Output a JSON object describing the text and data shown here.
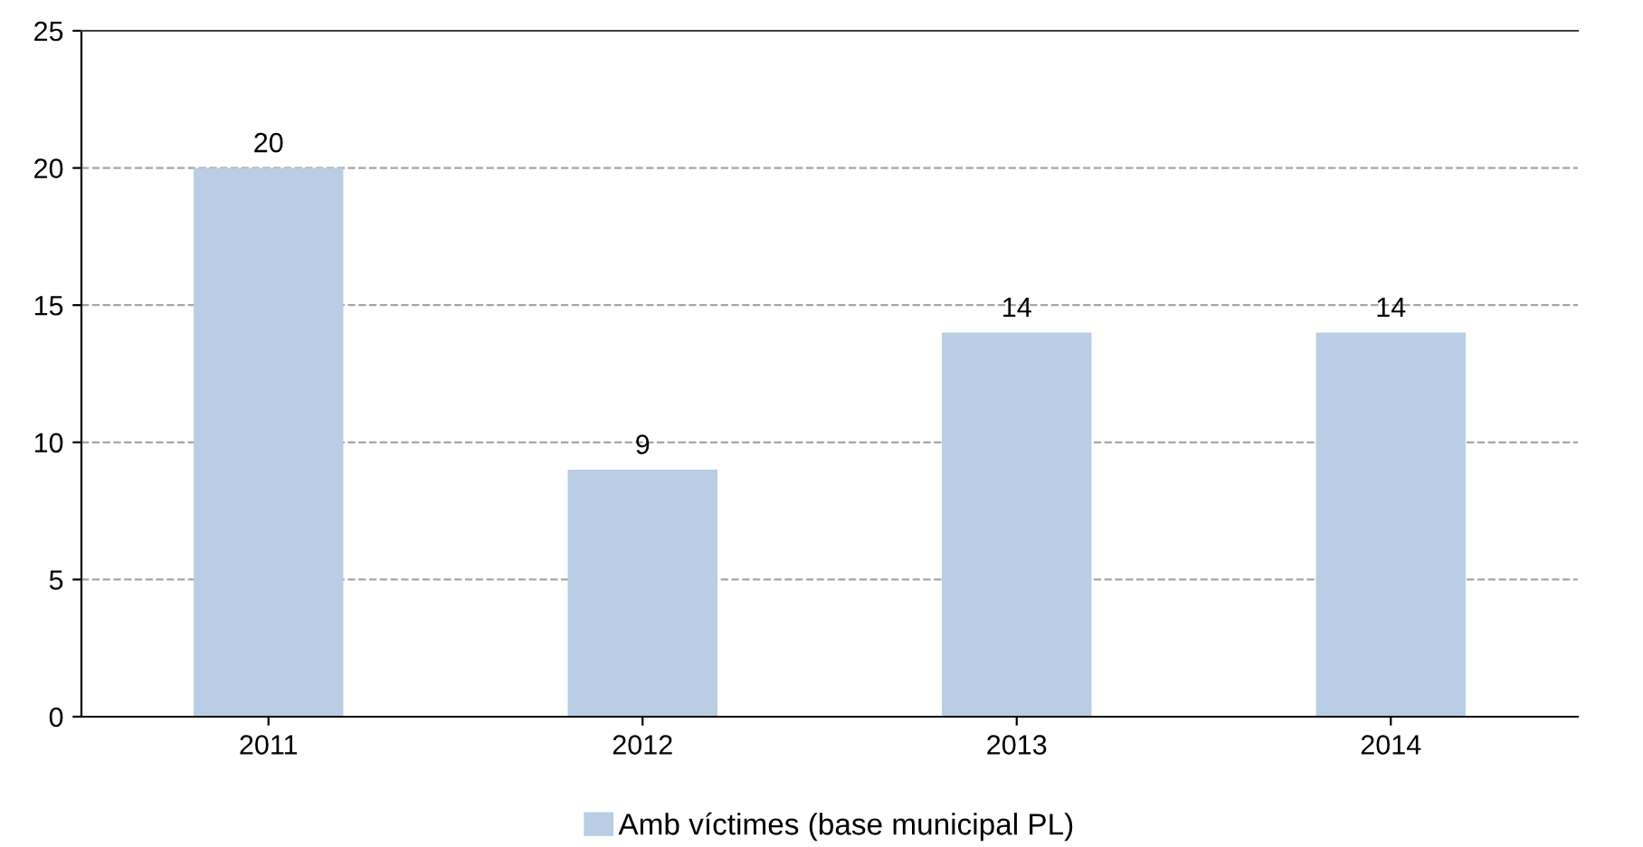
{
  "chart_data": {
    "type": "bar",
    "categories": [
      "2011",
      "2012",
      "2013",
      "2014"
    ],
    "series": [
      {
        "name": "Amb víctimes (base municipal PL)",
        "color": "#b9cde5",
        "values": [
          20,
          9,
          14,
          14
        ]
      }
    ],
    "ylim": [
      0,
      25
    ],
    "yticks": [
      0,
      5,
      10,
      15,
      20,
      25
    ],
    "grid": "y",
    "legend": "bottom",
    "data_labels": true
  }
}
